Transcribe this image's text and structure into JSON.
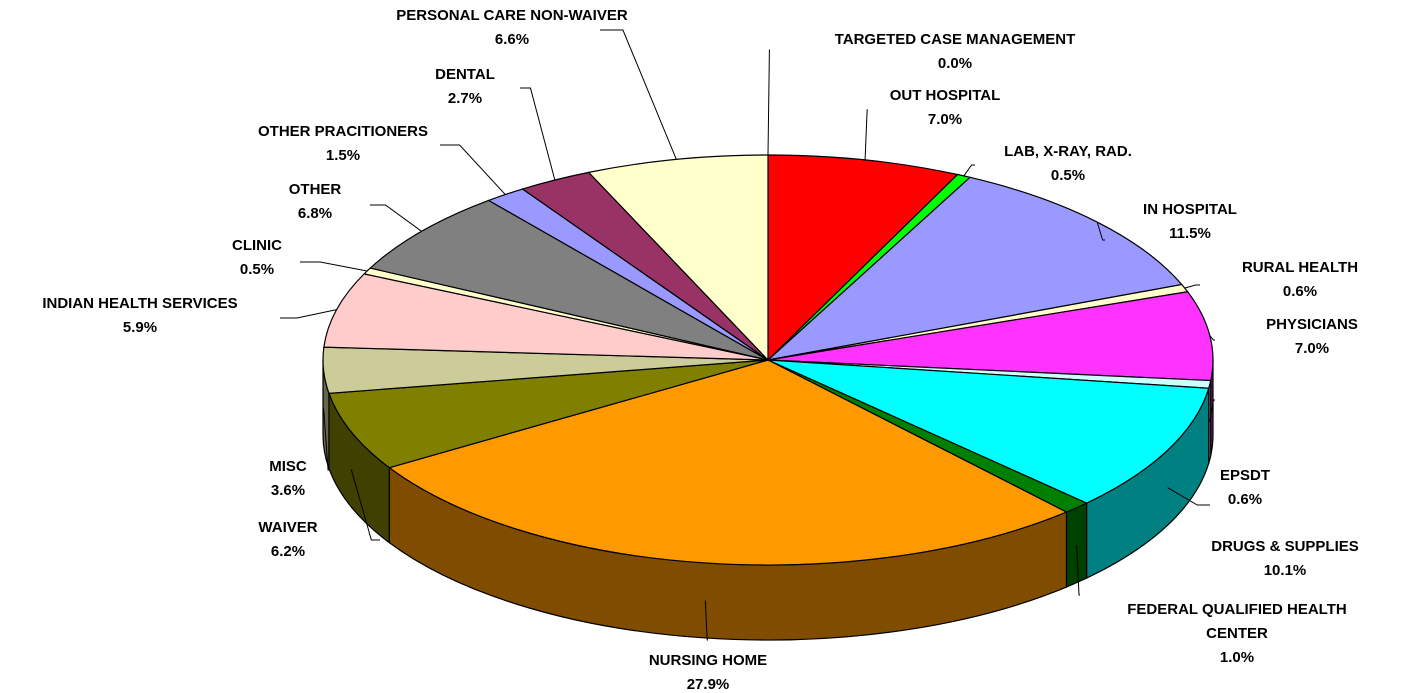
{
  "chart_data": {
    "type": "pie3d",
    "categories": [
      "TARGETED CASE MANAGEMENT",
      "OUT HOSPITAL",
      "LAB, X-RAY, RAD.",
      "IN HOSPITAL",
      "RURAL HEALTH",
      "PHYSICIANS",
      "EPSDT",
      "DRUGS & SUPPLIES",
      "FEDERAL QUALIFIED HEALTH CENTER",
      "NURSING HOME",
      "WAIVER",
      "MISC",
      "INDIAN HEALTH SERVICES",
      "CLINIC",
      "OTHER",
      "OTHER PRACITIONERS",
      "DENTAL",
      "PERSONAL CARE NON-WAIVER"
    ],
    "values": [
      0.0,
      7.0,
      0.5,
      11.5,
      0.6,
      7.0,
      0.6,
      10.1,
      1.0,
      27.9,
      6.2,
      3.6,
      5.9,
      0.5,
      6.8,
      1.5,
      2.7,
      6.6
    ],
    "value_labels": [
      "0.0%",
      "7.0%",
      "0.5%",
      "11.5%",
      "0.6%",
      "7.0%",
      "0.6%",
      "10.1%",
      "1.0%",
      "27.9%",
      "6.2%",
      "3.6%",
      "5.9%",
      "0.5%",
      "6.8%",
      "1.5%",
      "2.7%",
      "6.6%"
    ],
    "colors": [
      "#ffffff",
      "#ff0000",
      "#00ff00",
      "#9999ff",
      "#ffffcc",
      "#ff33ff",
      "#ccffff",
      "#00ffff",
      "#008000",
      "#ff9900",
      "#808000",
      "#cccc99",
      "#ffcccc",
      "#ffffcc",
      "#808080",
      "#9999ff",
      "#993366",
      "#ffffcc"
    ]
  }
}
